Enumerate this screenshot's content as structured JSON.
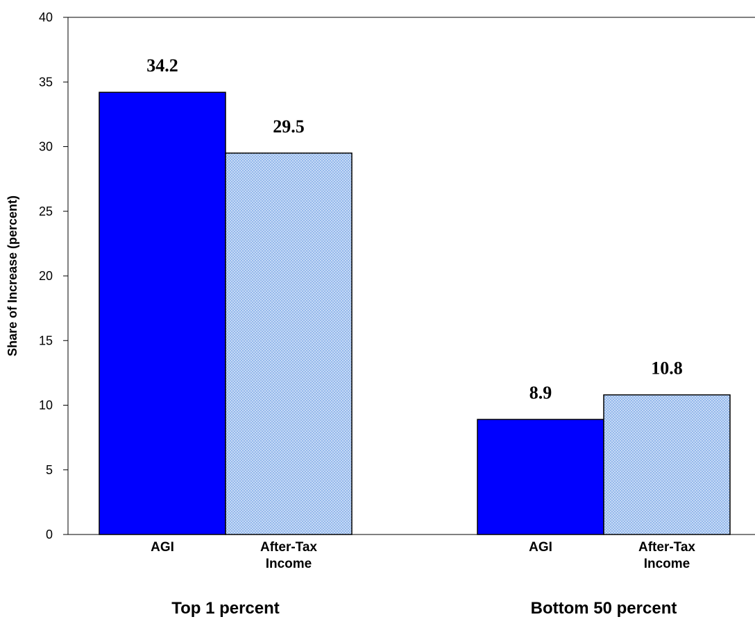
{
  "chart_data": {
    "type": "bar",
    "title": "",
    "ylabel": "Share of Increase (percent)",
    "ylim": [
      0,
      40
    ],
    "yticks": [
      0,
      5,
      10,
      15,
      20,
      25,
      30,
      35,
      40
    ],
    "grid": false,
    "legend": "none",
    "groups": [
      {
        "label": "Top 1 percent",
        "bars": [
          {
            "category": "AGI",
            "category_lines": [
              "AGI"
            ],
            "value": 34.2,
            "value_label": "34.2",
            "style": "solid"
          },
          {
            "category": "After-Tax Income",
            "category_lines": [
              "After-Tax",
              "Income"
            ],
            "value": 29.5,
            "value_label": "29.5",
            "style": "hatched"
          }
        ]
      },
      {
        "label": "Bottom 50 percent",
        "bars": [
          {
            "category": "AGI",
            "category_lines": [
              "AGI"
            ],
            "value": 8.9,
            "value_label": "8.9",
            "style": "solid"
          },
          {
            "category": "After-Tax Income",
            "category_lines": [
              "After-Tax",
              "Income"
            ],
            "value": 10.8,
            "value_label": "10.8",
            "style": "hatched"
          }
        ]
      }
    ],
    "colors": {
      "solid_fill": "#0000ff",
      "hatched_base": "#dce9fb",
      "hatched_line": "#8fb4ea",
      "outline": "#000000"
    }
  }
}
